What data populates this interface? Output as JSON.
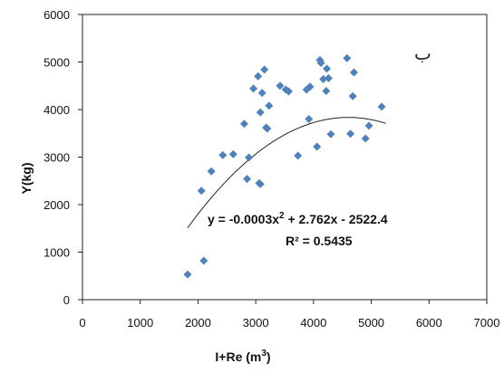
{
  "chart_data": {
    "type": "scatter",
    "xlabel": "I+Re (m",
    "xlabel_sup": "3",
    "xlabel_close": ")",
    "ylabel": "Y(kg)",
    "xlim": [
      0,
      7000
    ],
    "ylim": [
      0,
      6000
    ],
    "x_ticks": [
      0,
      1000,
      2000,
      3000,
      4000,
      5000,
      6000,
      7000
    ],
    "y_ticks": [
      0,
      1000,
      2000,
      3000,
      4000,
      5000,
      6000
    ],
    "x_tick_labels": [
      "0",
      "1000",
      "2000",
      "3000",
      "4000",
      "5000",
      "6000",
      "7000"
    ],
    "y_tick_labels": [
      "0",
      "1000",
      "2000",
      "3000",
      "4000",
      "5000",
      "6000"
    ],
    "grid": false,
    "marker_color": "#4f81bd",
    "trend_color": "#222222",
    "points": [
      {
        "x": 1820,
        "y": 530
      },
      {
        "x": 2100,
        "y": 820
      },
      {
        "x": 2060,
        "y": 2290
      },
      {
        "x": 2230,
        "y": 2700
      },
      {
        "x": 2430,
        "y": 3040
      },
      {
        "x": 2610,
        "y": 3060
      },
      {
        "x": 2800,
        "y": 3700
      },
      {
        "x": 2850,
        "y": 2540
      },
      {
        "x": 2880,
        "y": 2990
      },
      {
        "x": 2960,
        "y": 4440
      },
      {
        "x": 3040,
        "y": 4700
      },
      {
        "x": 3060,
        "y": 2450
      },
      {
        "x": 3080,
        "y": 2430
      },
      {
        "x": 3080,
        "y": 3940
      },
      {
        "x": 3110,
        "y": 4350
      },
      {
        "x": 3150,
        "y": 4840
      },
      {
        "x": 3180,
        "y": 3620
      },
      {
        "x": 3200,
        "y": 3600
      },
      {
        "x": 3230,
        "y": 4080
      },
      {
        "x": 3420,
        "y": 4500
      },
      {
        "x": 3520,
        "y": 4420
      },
      {
        "x": 3570,
        "y": 4380
      },
      {
        "x": 3730,
        "y": 3030
      },
      {
        "x": 3880,
        "y": 4420
      },
      {
        "x": 3920,
        "y": 3800
      },
      {
        "x": 3940,
        "y": 4480
      },
      {
        "x": 4060,
        "y": 3220
      },
      {
        "x": 4110,
        "y": 5040
      },
      {
        "x": 4130,
        "y": 4980
      },
      {
        "x": 4170,
        "y": 4640
      },
      {
        "x": 4220,
        "y": 4390
      },
      {
        "x": 4230,
        "y": 4860
      },
      {
        "x": 4260,
        "y": 4660
      },
      {
        "x": 4300,
        "y": 3480
      },
      {
        "x": 4580,
        "y": 5080
      },
      {
        "x": 4640,
        "y": 3490
      },
      {
        "x": 4680,
        "y": 4280
      },
      {
        "x": 4700,
        "y": 4780
      },
      {
        "x": 4900,
        "y": 3390
      },
      {
        "x": 4960,
        "y": 3660
      },
      {
        "x": 5180,
        "y": 4060
      }
    ],
    "trendline": {
      "a": -0.0003,
      "b": 2.762,
      "c": -2522.4,
      "x_from": 1820,
      "x_to": 5250
    },
    "equation": "y = -0.0003x",
    "equation_sup": "2",
    "equation_rest": " + 2.762x  - 2522.4",
    "r_squared": "R² = 0.5435",
    "corner_label": "ب"
  }
}
